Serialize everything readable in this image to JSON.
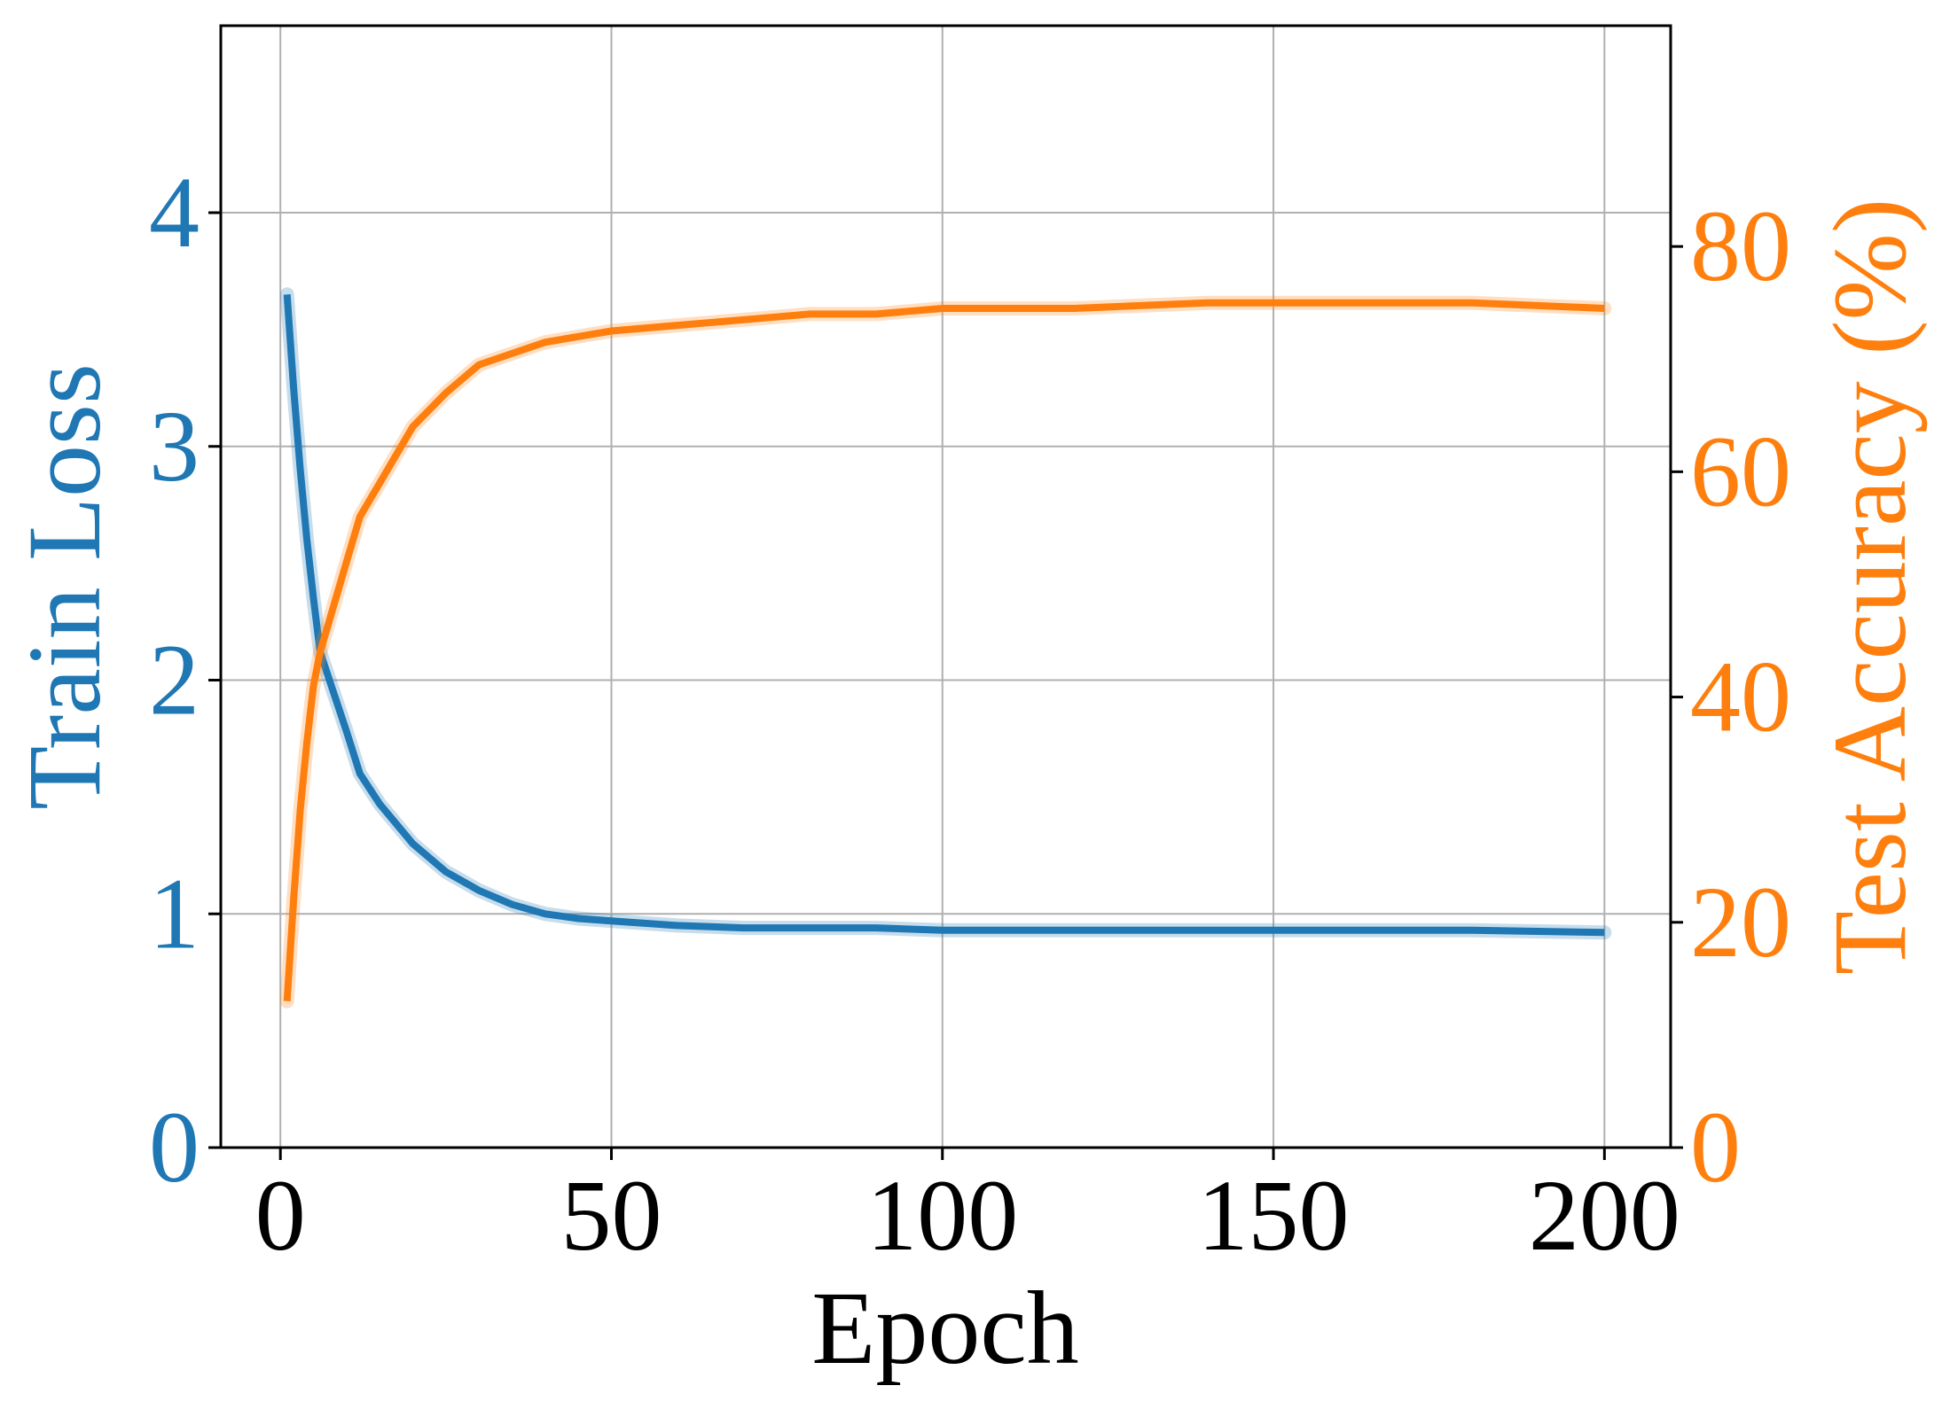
{
  "chart_data": {
    "type": "line",
    "xlabel": "Epoch",
    "ylabel_left": "Train Loss",
    "ylabel_right": "Test Accuracy (%)",
    "xlim": [
      -9,
      210
    ],
    "ylim_left": [
      0,
      4.8
    ],
    "ylim_right": [
      0,
      99.6
    ],
    "xticks": [
      "0",
      "50",
      "100",
      "150",
      "200"
    ],
    "yticks_left": [
      "0",
      "1",
      "2",
      "3",
      "4"
    ],
    "yticks_right": [
      "0",
      "20",
      "40",
      "60",
      "80"
    ],
    "grid": true,
    "colors": {
      "loss": "#1f77b4",
      "accuracy": "#ff7f0e",
      "axis": "#000000",
      "grid": "#b0b0b0"
    },
    "series": [
      {
        "name": "Train Loss",
        "axis": "left",
        "x": [
          1,
          2,
          3,
          4,
          5,
          6,
          8,
          10,
          12,
          15,
          20,
          25,
          30,
          35,
          40,
          45,
          50,
          60,
          70,
          80,
          90,
          100,
          120,
          140,
          160,
          180,
          200
        ],
        "values": [
          3.65,
          3.25,
          2.9,
          2.6,
          2.35,
          2.12,
          1.95,
          1.78,
          1.6,
          1.47,
          1.3,
          1.18,
          1.1,
          1.04,
          1.0,
          0.98,
          0.97,
          0.95,
          0.94,
          0.94,
          0.94,
          0.93,
          0.93,
          0.93,
          0.93,
          0.93,
          0.92
        ]
      },
      {
        "name": "Test Accuracy (%)",
        "axis": "right",
        "x": [
          1,
          2,
          3,
          4,
          5,
          6,
          8,
          10,
          12,
          15,
          20,
          25,
          30,
          35,
          40,
          45,
          50,
          60,
          70,
          80,
          90,
          100,
          120,
          140,
          160,
          180,
          200
        ],
        "values": [
          13,
          22,
          30,
          36,
          41,
          44,
          48,
          52,
          56,
          59,
          64,
          67,
          69.5,
          70.5,
          71.5,
          72,
          72.5,
          73,
          73.5,
          74,
          74,
          74.5,
          74.5,
          75,
          75,
          75,
          74.5
        ]
      }
    ]
  }
}
